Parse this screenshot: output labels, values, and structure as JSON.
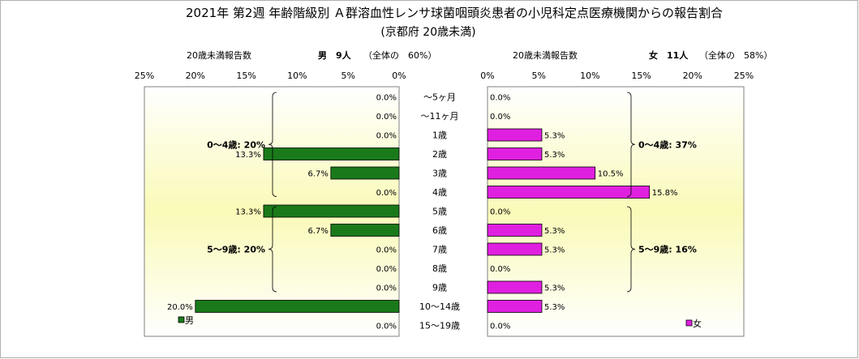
{
  "chart_data": {
    "type": "bar",
    "title": "2021年 第2週 年齢階級別 Ａ群溶血性レンサ球菌咽頭炎患者の小児科定点医療機関からの報告割合",
    "subtitle": "(京都府 20歳未満)",
    "categories": [
      "～5ヶ月",
      "～11ヶ月",
      "1歳",
      "2歳",
      "3歳",
      "4歳",
      "5歳",
      "6歳",
      "7歳",
      "8歳",
      "9歳",
      "10～14歳",
      "15～19歳"
    ],
    "xlim": [
      0,
      25
    ],
    "x_ticks": [
      "0%",
      "5%",
      "10%",
      "15%",
      "20%",
      "25%"
    ],
    "grid": false,
    "series": [
      {
        "name": "男",
        "header_label": "20歳未満報告数",
        "header_count": "男　9人",
        "header_share": "（全体の　60%）",
        "color": "#1a7a1a",
        "values": [
          0.0,
          0.0,
          0.0,
          13.3,
          6.7,
          0.0,
          13.3,
          6.7,
          0.0,
          0.0,
          0.0,
          20.0,
          0.0
        ],
        "value_labels": [
          "0.0%",
          "0.0%",
          "0.0%",
          "13.3%",
          "6.7%",
          "0.0%",
          "13.3%",
          "6.7%",
          "0.0%",
          "0.0%",
          "0.0%",
          "20.0%",
          "0.0%"
        ],
        "groups": [
          {
            "label": "0～4歳: 20%",
            "from": 0,
            "to": 5
          },
          {
            "label": "5～9歳: 20%",
            "from": 6,
            "to": 10
          }
        ]
      },
      {
        "name": "女",
        "header_label": "20歳未満報告数",
        "header_count": "女　11人",
        "header_share": "（全体の　58%）",
        "color": "#e020e0",
        "values": [
          0.0,
          0.0,
          5.3,
          5.3,
          10.5,
          15.8,
          0.0,
          5.3,
          5.3,
          0.0,
          5.3,
          5.3,
          0.0
        ],
        "value_labels": [
          "0.0%",
          "0.0%",
          "5.3%",
          "5.3%",
          "10.5%",
          "15.8%",
          "0.0%",
          "5.3%",
          "5.3%",
          "0.0%",
          "5.3%",
          "5.3%",
          "0.0%"
        ],
        "groups": [
          {
            "label": "0～4歳: 37%",
            "from": 0,
            "to": 5
          },
          {
            "label": "5～9歳: 16%",
            "from": 6,
            "to": 10
          }
        ]
      }
    ]
  }
}
